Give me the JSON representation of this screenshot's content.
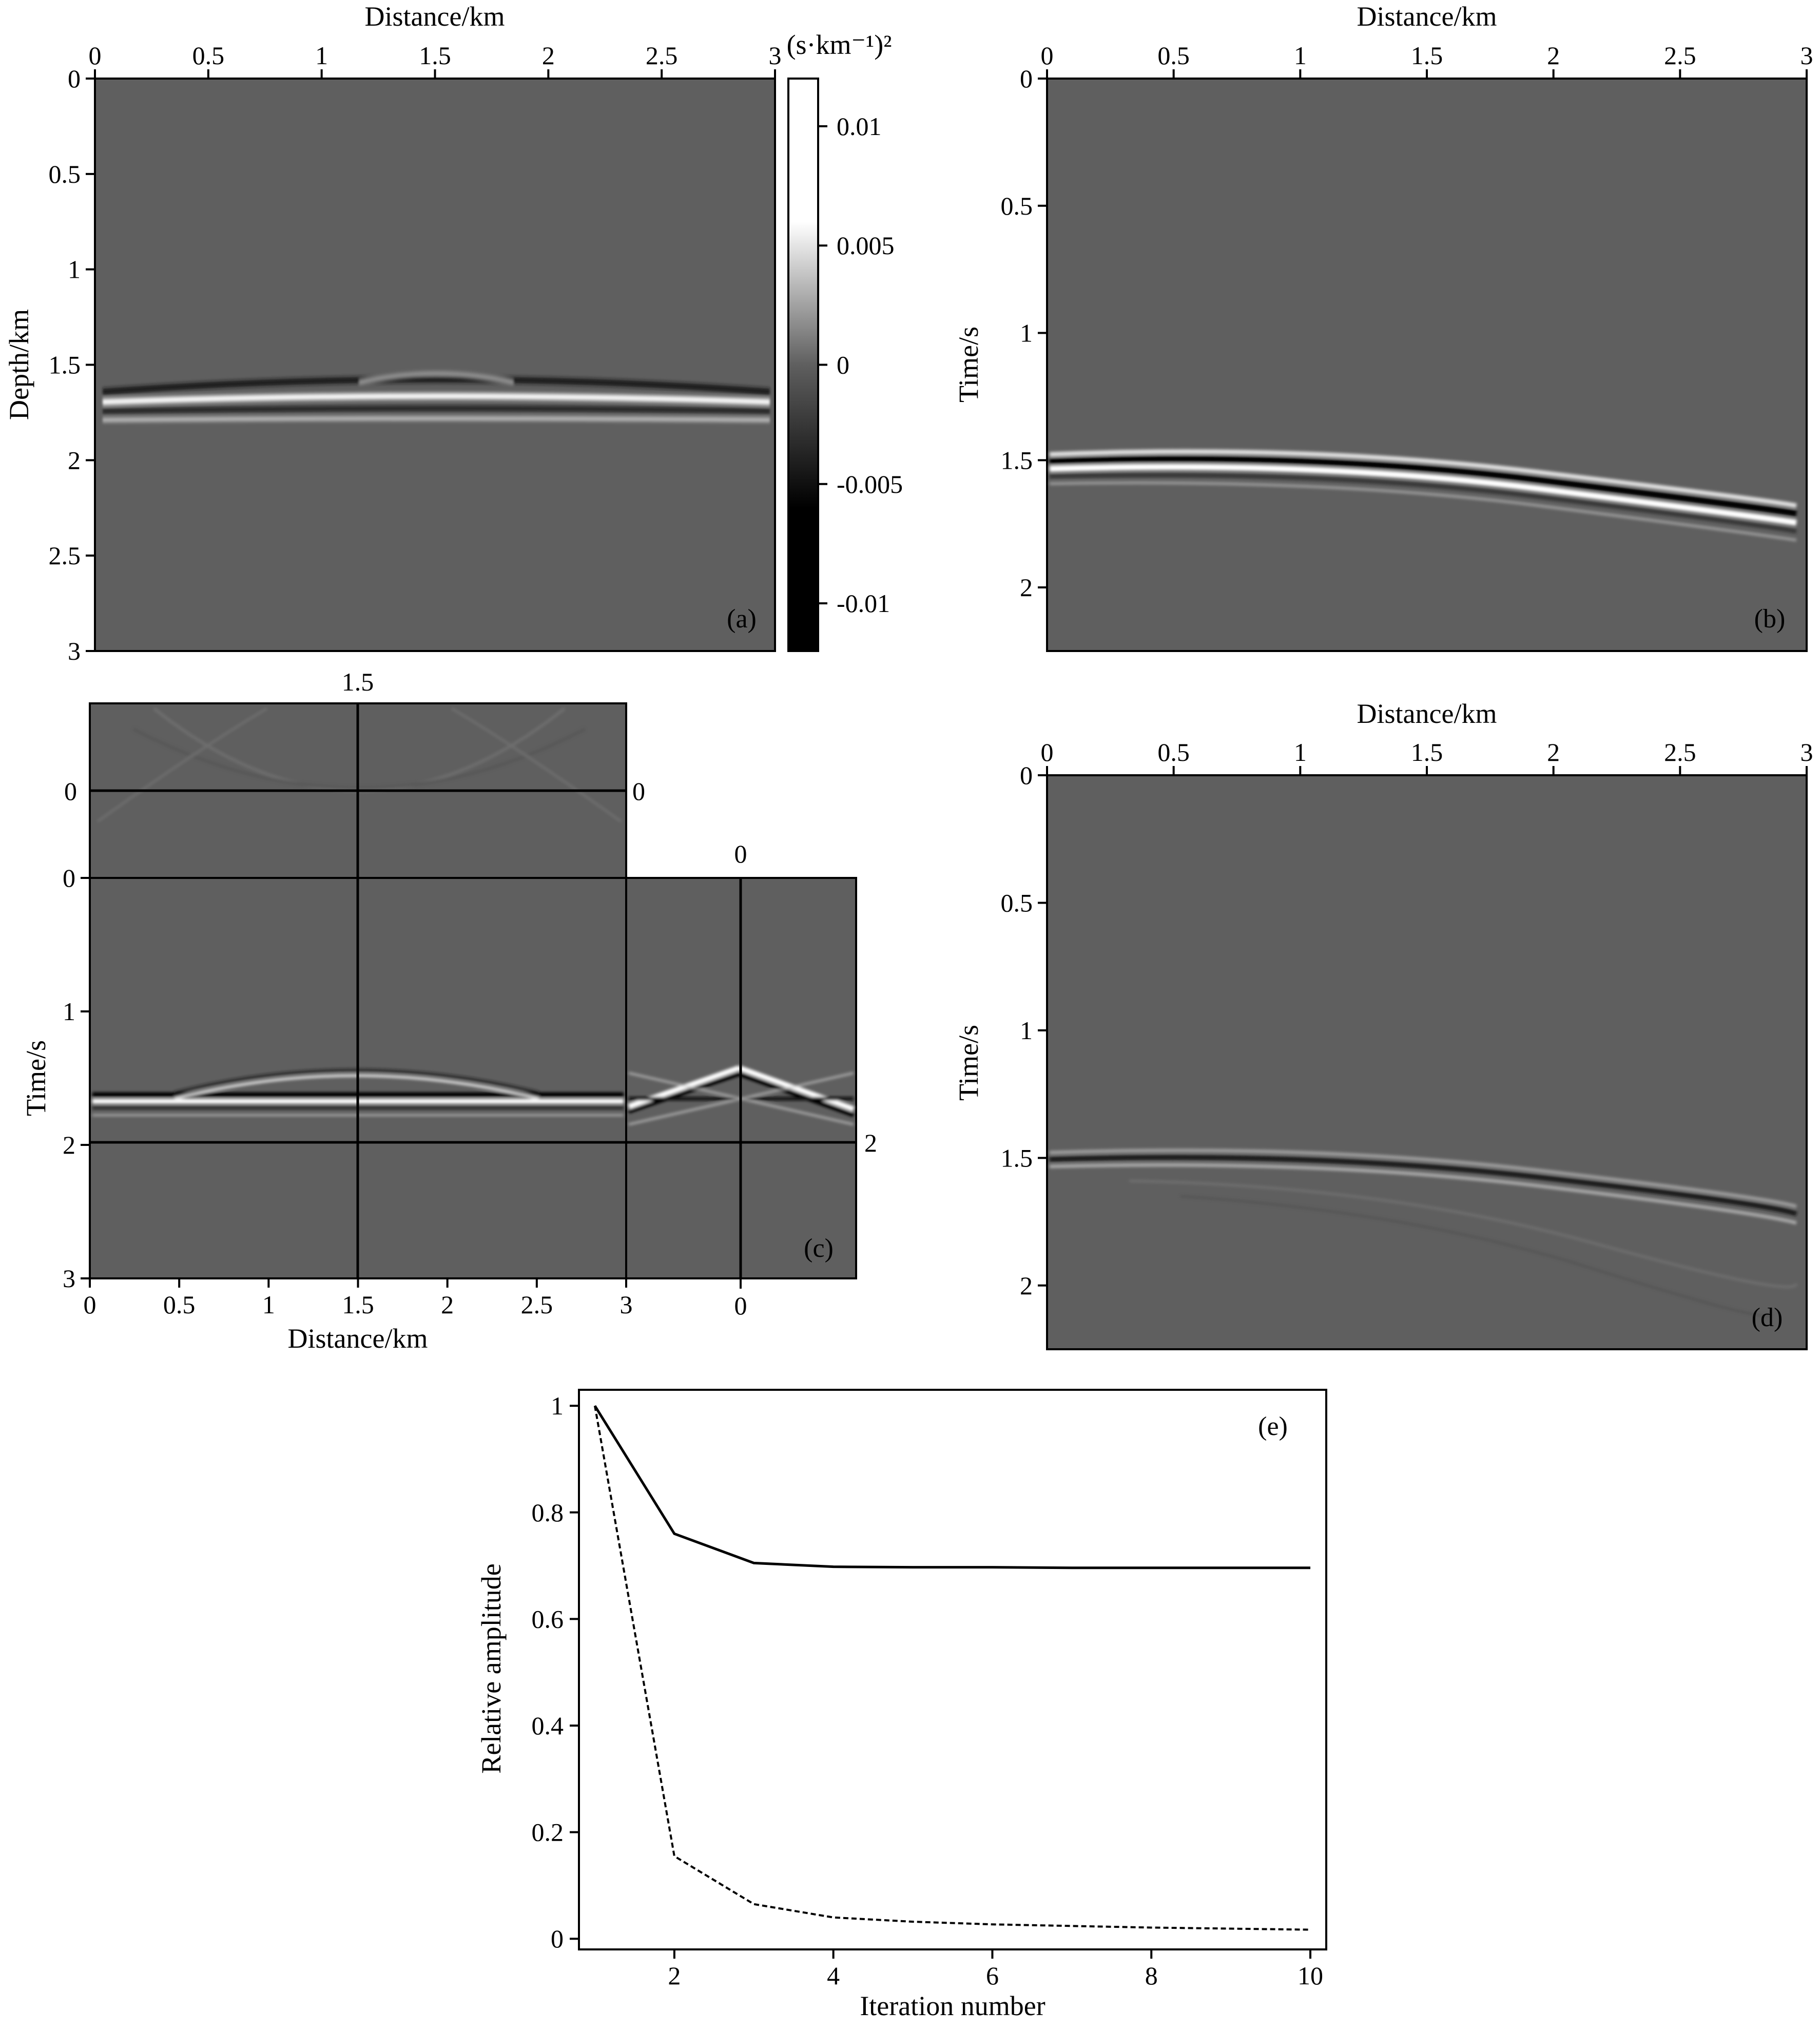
{
  "figure": {
    "colors": {
      "background_gray": "#5f5f5f",
      "ink": "#000000",
      "paper": "#ffffff"
    },
    "panel_a": {
      "tag": "(a)",
      "top_axis_label": "Distance/km",
      "left_axis_label": "Depth/km",
      "top_ticks": [
        "0",
        "0.5",
        "1",
        "1.5",
        "2",
        "2.5",
        "3"
      ],
      "left_ticks": [
        "0",
        "0.5",
        "1",
        "1.5",
        "2",
        "2.5",
        "3"
      ],
      "colorbar": {
        "unit": "(s·km⁻¹)²",
        "ticks": [
          "0.01",
          "0.005",
          "0",
          "-0.005",
          "-0.01"
        ],
        "range": [
          -0.012,
          0.012
        ]
      },
      "reflector_depth_km": 1.65
    },
    "panel_b": {
      "tag": "(b)",
      "top_axis_label": "Distance/km",
      "left_axis_label": "Time/s",
      "top_ticks": [
        "0",
        "0.5",
        "1",
        "1.5",
        "2",
        "2.5",
        "3"
      ],
      "left_ticks": [
        "0",
        "0.5",
        "1",
        "1.5",
        "2"
      ],
      "event_start_time_s": 1.48,
      "event_end_time_s": 1.68
    },
    "panel_c": {
      "tag": "(c)",
      "bottom_axis_label": "Distance/km",
      "left_axis_label": "Time/s",
      "bottom_ticks": [
        "0",
        "0.5",
        "1",
        "1.5",
        "2",
        "2.5",
        "3"
      ],
      "bottom_right_tick": "0",
      "left_ticks": [
        "0",
        "1",
        "2",
        "3"
      ],
      "top_section_tick": "0",
      "slice_labels": {
        "top": "1.5",
        "right_of_top": "0",
        "above_right": "0",
        "right_lower": "2"
      }
    },
    "panel_d": {
      "tag": "(d)",
      "top_axis_label": "Distance/km",
      "left_axis_label": "Time/s",
      "top_ticks": [
        "0",
        "0.5",
        "1",
        "1.5",
        "2",
        "2.5",
        "3"
      ],
      "left_ticks": [
        "0",
        "0.5",
        "1",
        "1.5",
        "2"
      ]
    }
  },
  "chart_data": {
    "type": "line",
    "tag": "(e)",
    "xlabel": "Iteration number",
    "ylabel": "Relative amplitude",
    "xlim": [
      0.8,
      10.2
    ],
    "ylim": [
      -0.02,
      1.03
    ],
    "xticks": [
      2,
      4,
      6,
      8,
      10
    ],
    "yticks": [
      0,
      0.2,
      0.4,
      0.6,
      0.8,
      1
    ],
    "x": [
      1,
      2,
      3,
      4,
      5,
      6,
      7,
      8,
      9,
      10
    ],
    "series": [
      {
        "style": "solid",
        "values": [
          1.0,
          0.76,
          0.705,
          0.698,
          0.697,
          0.697,
          0.696,
          0.696,
          0.696,
          0.696
        ]
      },
      {
        "style": "dashed",
        "values": [
          1.0,
          0.155,
          0.065,
          0.04,
          0.032,
          0.027,
          0.024,
          0.021,
          0.019,
          0.017
        ]
      }
    ],
    "grid": false,
    "legend": "none"
  }
}
